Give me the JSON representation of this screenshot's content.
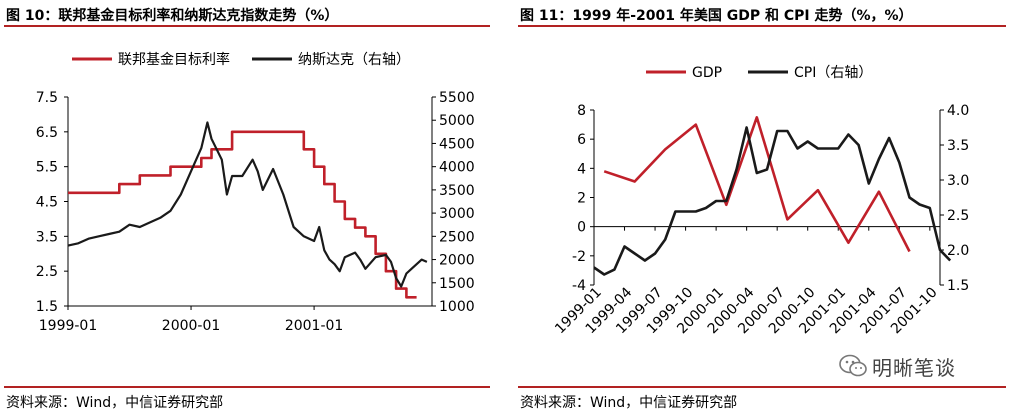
{
  "left": {
    "title": "图 10：联邦基金目标利率和纳斯达克指数走势（%）",
    "source": "资料来源：Wind，中信证券研究部"
  },
  "right": {
    "title": "图 11：1999 年-2001 年美国 GDP 和 CPI 走势（%，%）",
    "source": "资料来源：Wind，中信证券研究部"
  },
  "watermark": {
    "text": "明晰笔谈",
    "icon": "wechat-icon"
  },
  "chart_data": [
    {
      "type": "line",
      "legend_position": "top",
      "x_ticks": [
        "1999-01",
        "2000-01",
        "2001-01"
      ],
      "y_left": {
        "ticks": [
          1.5,
          2.5,
          3.5,
          4.5,
          5.5,
          6.5,
          7.5
        ],
        "range": [
          1.5,
          7.5
        ]
      },
      "y_right": {
        "ticks": [
          1000,
          1500,
          2000,
          2500,
          3000,
          3500,
          4000,
          4500,
          5000,
          5500
        ],
        "range": [
          1000,
          5500
        ]
      },
      "x_range": [
        0,
        35.5
      ],
      "series": [
        {
          "name": "联邦基金目标利率",
          "axis": "left",
          "color": "#c0202a",
          "step": true,
          "points": [
            [
              0,
              4.75
            ],
            [
              5,
              4.75
            ],
            [
              5,
              5.0
            ],
            [
              7,
              5.0
            ],
            [
              7,
              5.25
            ],
            [
              10,
              5.25
            ],
            [
              10,
              5.5
            ],
            [
              13,
              5.5
            ],
            [
              13,
              5.75
            ],
            [
              14,
              5.75
            ],
            [
              14,
              6.0
            ],
            [
              16,
              6.0
            ],
            [
              16,
              6.5
            ],
            [
              23,
              6.5
            ],
            [
              23,
              6.0
            ],
            [
              24,
              6.0
            ],
            [
              24,
              5.5
            ],
            [
              25,
              5.5
            ],
            [
              25,
              5.0
            ],
            [
              26,
              5.0
            ],
            [
              26,
              4.5
            ],
            [
              27,
              4.5
            ],
            [
              27,
              4.0
            ],
            [
              28,
              4.0
            ],
            [
              28,
              3.75
            ],
            [
              29,
              3.75
            ],
            [
              29,
              3.5
            ],
            [
              30,
              3.5
            ],
            [
              30,
              3.0
            ],
            [
              31,
              3.0
            ],
            [
              31,
              2.5
            ],
            [
              32,
              2.5
            ],
            [
              32,
              2.0
            ],
            [
              33,
              2.0
            ],
            [
              33,
              1.75
            ],
            [
              34,
              1.75
            ]
          ]
        },
        {
          "name": "纳斯达克（右轴）",
          "axis": "right",
          "color": "#1a1a1a",
          "step": false,
          "points": [
            [
              0,
              2300
            ],
            [
              1,
              2350
            ],
            [
              2,
              2450
            ],
            [
              3,
              2500
            ],
            [
              4,
              2550
            ],
            [
              5,
              2600
            ],
            [
              6,
              2750
            ],
            [
              7,
              2700
            ],
            [
              8,
              2800
            ],
            [
              9,
              2900
            ],
            [
              10,
              3050
            ],
            [
              11,
              3400
            ],
            [
              12,
              3900
            ],
            [
              13,
              4400
            ],
            [
              13.6,
              4950
            ],
            [
              14,
              4600
            ],
            [
              15,
              4150
            ],
            [
              15.5,
              3400
            ],
            [
              16,
              3800
            ],
            [
              17,
              3800
            ],
            [
              18,
              4150
            ],
            [
              18.5,
              3900
            ],
            [
              19,
              3500
            ],
            [
              20,
              3950
            ],
            [
              21,
              3400
            ],
            [
              22,
              2700
            ],
            [
              23,
              2500
            ],
            [
              24,
              2400
            ],
            [
              24.5,
              2700
            ],
            [
              25,
              2200
            ],
            [
              25.5,
              2000
            ],
            [
              26,
              1900
            ],
            [
              26.5,
              1750
            ],
            [
              27,
              2050
            ],
            [
              28,
              2150
            ],
            [
              28.5,
              2000
            ],
            [
              29,
              1800
            ],
            [
              30,
              2050
            ],
            [
              31,
              2100
            ],
            [
              31.5,
              1950
            ],
            [
              32,
              1600
            ],
            [
              32.5,
              1420
            ],
            [
              33,
              1700
            ],
            [
              33.5,
              1800
            ],
            [
              34,
              1900
            ],
            [
              34.5,
              2000
            ],
            [
              35,
              1950
            ]
          ]
        }
      ]
    },
    {
      "type": "line",
      "legend_position": "top",
      "categories": [
        "1999-01",
        "1999-04",
        "1999-07",
        "1999-10",
        "2000-01",
        "2000-04",
        "2000-07",
        "2000-10",
        "2001-01",
        "2001-04",
        "2001-07",
        "2001-10"
      ],
      "y_left": {
        "ticks": [
          -4,
          -2,
          0,
          2,
          4,
          6,
          8
        ],
        "range": [
          -4,
          8
        ]
      },
      "y_right": {
        "ticks": [
          1.5,
          2.0,
          2.5,
          3.0,
          3.5,
          4.0
        ],
        "range": [
          1.5,
          4.0
        ]
      },
      "x_range": [
        0,
        34
      ],
      "series": [
        {
          "name": "GDP",
          "axis": "left",
          "color": "#c0202a",
          "points": [
            [
              1,
              3.8
            ],
            [
              4,
              3.1
            ],
            [
              7,
              5.3
            ],
            [
              10,
              7.0
            ],
            [
              13,
              1.5
            ],
            [
              16,
              7.5
            ],
            [
              19,
              0.5
            ],
            [
              22,
              2.5
            ],
            [
              25,
              -1.1
            ],
            [
              28,
              2.4
            ],
            [
              31,
              -1.7
            ]
          ]
        },
        {
          "name": "CPI（右轴）",
          "axis": "right",
          "color": "#1a1a1a",
          "points": [
            [
              0,
              1.75
            ],
            [
              1,
              1.65
            ],
            [
              2,
              1.72
            ],
            [
              3,
              2.05
            ],
            [
              4,
              1.95
            ],
            [
              5,
              1.85
            ],
            [
              6,
              1.95
            ],
            [
              7,
              2.15
            ],
            [
              8,
              2.55
            ],
            [
              9,
              2.55
            ],
            [
              10,
              2.55
            ],
            [
              11,
              2.6
            ],
            [
              12,
              2.7
            ],
            [
              13,
              2.7
            ],
            [
              14,
              3.15
            ],
            [
              15,
              3.75
            ],
            [
              16,
              3.1
            ],
            [
              17,
              3.15
            ],
            [
              18,
              3.7
            ],
            [
              19,
              3.7
            ],
            [
              20,
              3.45
            ],
            [
              21,
              3.55
            ],
            [
              22,
              3.45
            ],
            [
              23,
              3.45
            ],
            [
              24,
              3.45
            ],
            [
              25,
              3.65
            ],
            [
              26,
              3.5
            ],
            [
              27,
              2.95
            ],
            [
              28,
              3.3
            ],
            [
              29,
              3.6
            ],
            [
              30,
              3.25
            ],
            [
              31,
              2.75
            ],
            [
              32,
              2.65
            ],
            [
              33,
              2.6
            ],
            [
              34,
              2.0
            ],
            [
              35,
              1.85
            ]
          ]
        }
      ]
    }
  ]
}
